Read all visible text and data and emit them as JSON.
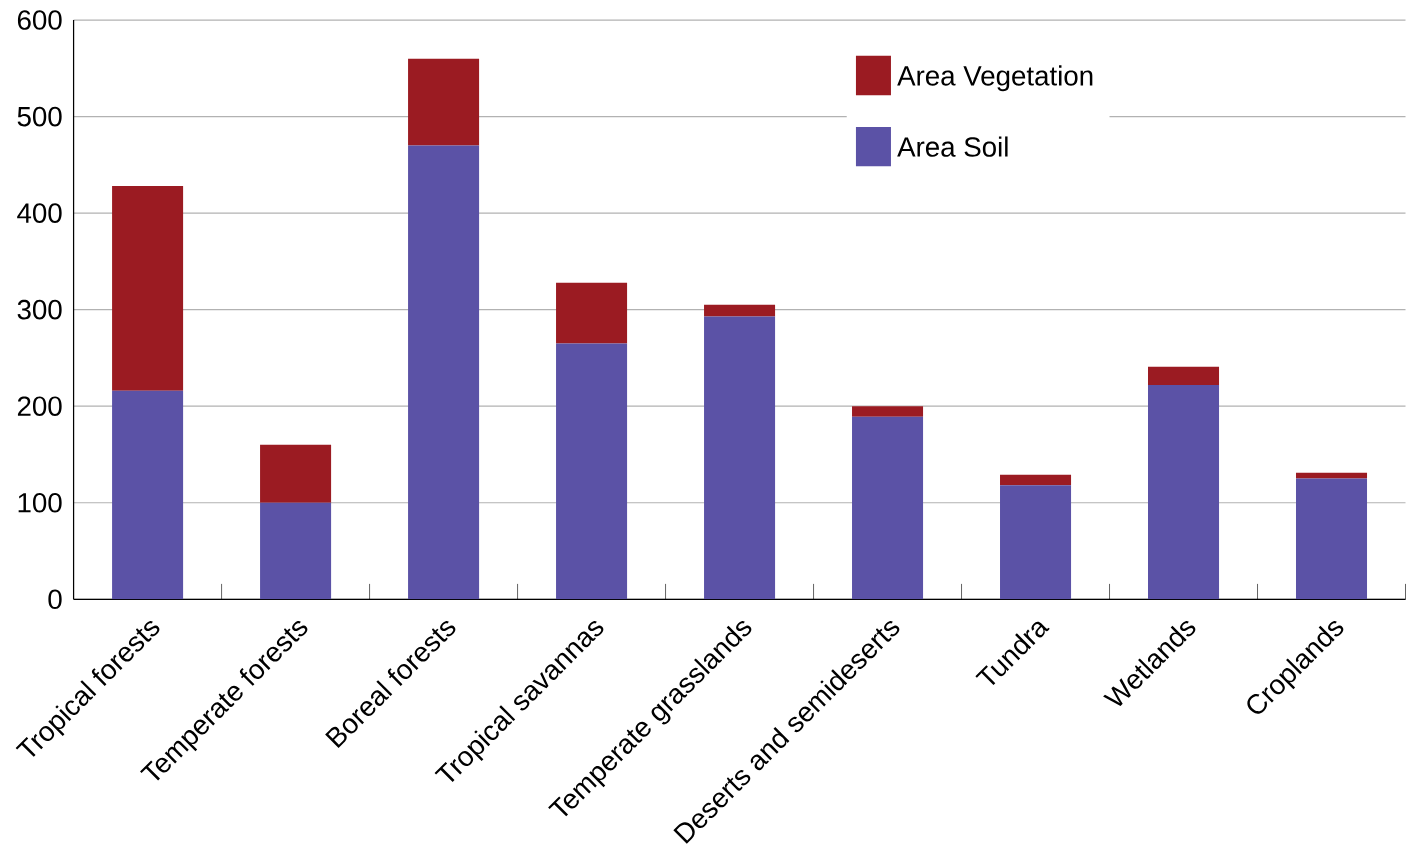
{
  "chart_data": {
    "type": "bar",
    "stacked": true,
    "categories": [
      "Tropical forests",
      "Temperate forests",
      "Boreal forests",
      "Tropical savannas",
      "Temperate grasslands",
      "Deserts and semideserts",
      "Tundra",
      "Wetlands",
      "Croplands"
    ],
    "series": [
      {
        "name": "Area Soil",
        "color": "#5b52a6",
        "values": [
          216,
          100,
          470,
          265,
          293,
          189,
          118,
          222,
          125
        ]
      },
      {
        "name": "Area Vegetation",
        "color": "#9b1b22",
        "values": [
          212,
          60,
          90,
          63,
          12,
          11,
          11,
          19,
          6
        ]
      }
    ],
    "ylim": [
      0,
      600
    ],
    "yticks": [
      0,
      100,
      200,
      300,
      400,
      500,
      600
    ],
    "grid": "y",
    "legend": "top right"
  }
}
